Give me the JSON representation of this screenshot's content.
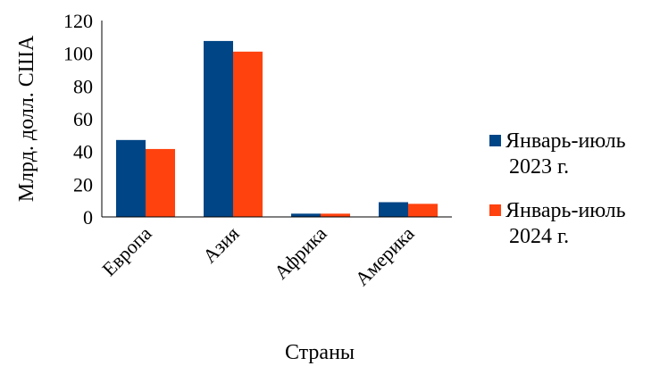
{
  "chart_data": {
    "type": "bar",
    "categories": [
      "Европа",
      "Азия",
      "Африка",
      "Америка"
    ],
    "series": [
      {
        "name": "Январь-июль 2023 г.",
        "legend_lines": [
          "Январь-июль",
          "2023 г."
        ],
        "color": "#004586",
        "values": [
          47,
          107.5,
          2,
          9
        ]
      },
      {
        "name": "Январь-июль 2024 г.",
        "legend_lines": [
          "Январь-июль",
          "2024 г."
        ],
        "color": "#ff420e",
        "values": [
          41.5,
          101,
          2,
          8
        ]
      }
    ],
    "xlabel": "Страны",
    "ylabel": "Млрд. долл. США",
    "ylim": [
      0,
      120
    ],
    "yticks": [
      0,
      20,
      40,
      60,
      80,
      100,
      120
    ],
    "grid": false,
    "legend": "right"
  }
}
